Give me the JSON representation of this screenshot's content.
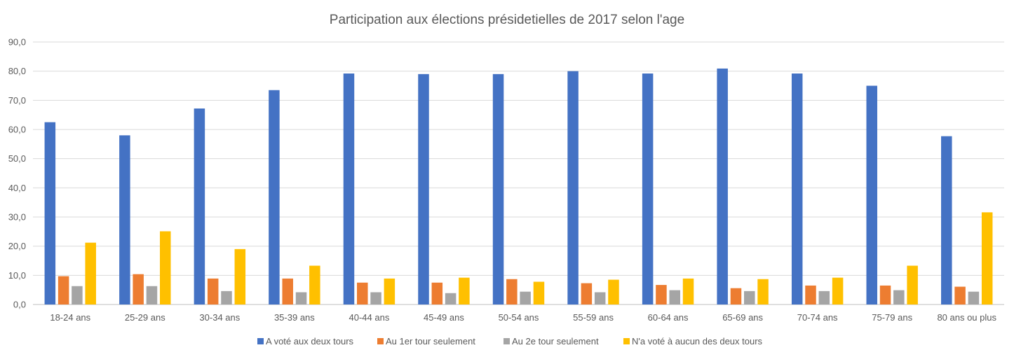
{
  "chart_data": {
    "type": "bar",
    "title": "Participation aux élections présidetielles de 2017 selon l'age",
    "xlabel": "",
    "ylabel": "",
    "ylim": [
      0,
      90
    ],
    "yticks": [
      "0,0",
      "10,0",
      "20,0",
      "30,0",
      "40,0",
      "50,0",
      "60,0",
      "70,0",
      "80,0",
      "90,0"
    ],
    "grid": true,
    "legend_position": "bottom",
    "categories": [
      "18-24 ans",
      "25-29 ans",
      "30-34 ans",
      "35-39 ans",
      "40-44 ans",
      "45-49 ans",
      "50-54 ans",
      "55-59 ans",
      "60-64 ans",
      "65-69 ans",
      "70-74 ans",
      "75-79 ans",
      "80 ans ou plus"
    ],
    "series": [
      {
        "name": "A voté aux deux tours",
        "color": "#4472C4",
        "values": [
          62.5,
          58.0,
          67.2,
          73.5,
          79.2,
          79.0,
          79.0,
          80.0,
          79.2,
          80.9,
          79.2,
          75.0,
          57.7
        ]
      },
      {
        "name": "Au 1er tour seulement",
        "color": "#ED7D31",
        "values": [
          9.7,
          10.4,
          8.9,
          8.9,
          7.5,
          7.5,
          8.7,
          7.3,
          6.7,
          5.6,
          6.5,
          6.5,
          6.1
        ]
      },
      {
        "name": "Au 2e tour seulement",
        "color": "#A5A5A5",
        "values": [
          6.3,
          6.3,
          4.6,
          4.2,
          4.2,
          3.9,
          4.4,
          4.2,
          4.9,
          4.6,
          4.6,
          4.9,
          4.4
        ]
      },
      {
        "name": "N'a voté à aucun des deux tours",
        "color": "#FFC000",
        "values": [
          21.2,
          25.1,
          19.0,
          13.3,
          8.9,
          9.2,
          7.8,
          8.5,
          8.9,
          8.7,
          9.2,
          13.3,
          31.6
        ]
      }
    ]
  }
}
